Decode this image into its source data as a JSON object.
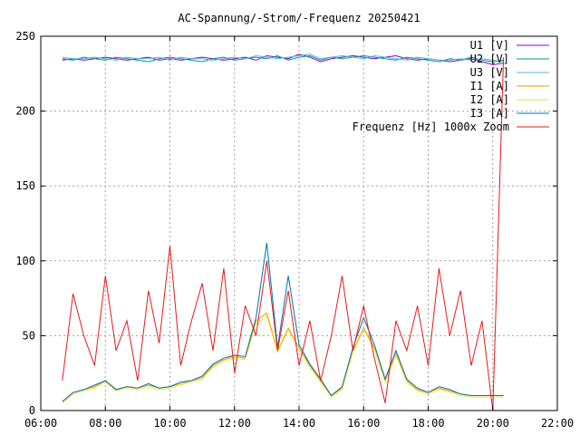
{
  "chart_data": {
    "type": "line",
    "title": "AC-Spannung/-Strom/-Frequenz 20250421",
    "xlabel": "",
    "ylabel": "",
    "xlim": [
      "06:00",
      "22:00"
    ],
    "ylim": [
      0,
      250
    ],
    "x_ticks": [
      "06:00",
      "08:00",
      "10:00",
      "12:00",
      "14:00",
      "16:00",
      "18:00",
      "20:00",
      "22:00"
    ],
    "y_ticks": [
      "0",
      "50",
      "100",
      "150",
      "200",
      "250"
    ],
    "grid": true,
    "legend_position": "top-right",
    "x": [
      "06:40",
      "07:00",
      "07:20",
      "07:40",
      "08:00",
      "08:20",
      "08:40",
      "09:00",
      "09:20",
      "09:40",
      "10:00",
      "10:20",
      "10:40",
      "11:00",
      "11:20",
      "11:40",
      "12:00",
      "12:20",
      "12:40",
      "13:00",
      "13:20",
      "13:40",
      "14:00",
      "14:20",
      "14:40",
      "15:00",
      "15:20",
      "15:40",
      "16:00",
      "16:20",
      "16:40",
      "17:00",
      "17:20",
      "17:40",
      "18:00",
      "18:20",
      "18:40",
      "19:00",
      "19:20",
      "19:40",
      "20:00",
      "20:20"
    ],
    "series": [
      {
        "name": "U1 [V]",
        "color": "#9400d3",
        "values": [
          234,
          235,
          234,
          235,
          236,
          235,
          234,
          235,
          236,
          234,
          235,
          234,
          235,
          236,
          235,
          234,
          235,
          236,
          234,
          237,
          236,
          235,
          238,
          236,
          233,
          235,
          236,
          237,
          236,
          235,
          236,
          237,
          235,
          234,
          235,
          234,
          233,
          234,
          235,
          233,
          231,
          232
        ]
      },
      {
        "name": "U2 [V]",
        "color": "#009e73",
        "values": [
          235,
          234,
          236,
          235,
          234,
          236,
          235,
          234,
          233,
          235,
          236,
          235,
          234,
          233,
          235,
          236,
          234,
          235,
          236,
          235,
          237,
          234,
          236,
          237,
          234,
          236,
          235,
          236,
          237,
          236,
          235,
          234,
          236,
          235,
          234,
          233,
          235,
          234,
          236,
          234,
          233,
          234
        ]
      },
      {
        "name": "U3 [V]",
        "color": "#56b4e9",
        "values": [
          236,
          235,
          235,
          236,
          235,
          234,
          236,
          235,
          235,
          236,
          234,
          236,
          235,
          235,
          234,
          235,
          236,
          235,
          237,
          236,
          235,
          236,
          237,
          238,
          235,
          236,
          237,
          236,
          235,
          237,
          236,
          235,
          234,
          236,
          235,
          234,
          234,
          235,
          234,
          235,
          234,
          233
        ]
      },
      {
        "name": "I1 [A]",
        "color": "#e69f00",
        "values": [
          6,
          12,
          14,
          16,
          20,
          14,
          16,
          15,
          17,
          15,
          16,
          18,
          20,
          22,
          30,
          34,
          36,
          35,
          60,
          65,
          40,
          55,
          42,
          30,
          20,
          10,
          15,
          40,
          55,
          42,
          20,
          38,
          20,
          14,
          12,
          15,
          13,
          11,
          10,
          10,
          10,
          10
        ]
      },
      {
        "name": "I2 [A]",
        "color": "#f0e442",
        "values": [
          5,
          11,
          13,
          15,
          19,
          13,
          15,
          14,
          16,
          14,
          15,
          17,
          19,
          21,
          29,
          33,
          35,
          34,
          58,
          63,
          39,
          54,
          41,
          29,
          19,
          9,
          14,
          39,
          54,
          41,
          19,
          37,
          19,
          13,
          11,
          14,
          12,
          10,
          9,
          9,
          9,
          9
        ]
      },
      {
        "name": "I3 [A]",
        "color": "#0072b2",
        "values": [
          6,
          12,
          14,
          17,
          20,
          14,
          16,
          15,
          18,
          15,
          16,
          19,
          20,
          23,
          31,
          35,
          37,
          36,
          62,
          112,
          42,
          90,
          44,
          31,
          21,
          10,
          16,
          42,
          62,
          44,
          21,
          40,
          21,
          15,
          12,
          16,
          14,
          11,
          10,
          10,
          10,
          10
        ]
      },
      {
        "name": "Frequenz [Hz] 1000x Zoom",
        "color": "#e41a1c",
        "values": [
          20,
          78,
          50,
          30,
          90,
          40,
          60,
          20,
          80,
          45,
          110,
          30,
          60,
          85,
          40,
          95,
          25,
          70,
          50,
          100,
          40,
          80,
          30,
          60,
          20,
          50,
          90,
          40,
          70,
          35,
          5,
          60,
          40,
          70,
          30,
          95,
          50,
          80,
          30,
          60,
          0,
          236
        ]
      }
    ]
  }
}
